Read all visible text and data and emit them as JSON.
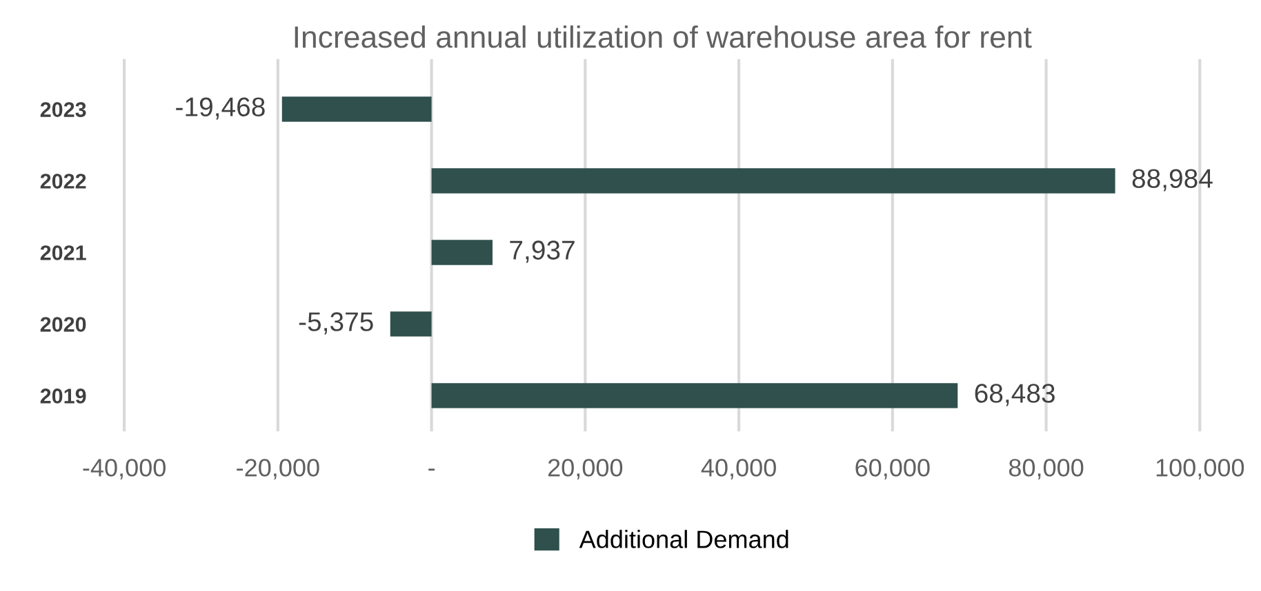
{
  "chart_data": {
    "type": "bar",
    "orientation": "horizontal",
    "title": "Increased annual utilization of warehouse area for rent",
    "categories": [
      "2023",
      "2022",
      "2021",
      "2020",
      "2019"
    ],
    "series": [
      {
        "name": "Additional Demand",
        "color": "#2f504c",
        "values": [
          -19468,
          88984,
          7937,
          -5375,
          68483
        ],
        "value_labels": [
          "-19,468",
          "88,984",
          "7,937",
          "-5,375",
          "68,483"
        ]
      }
    ],
    "xlim": [
      -40000,
      100000
    ],
    "xticks": [
      {
        "value": -40000,
        "label": "-40,000"
      },
      {
        "value": -20000,
        "label": "-20,000"
      },
      {
        "value": 0,
        "label": "-"
      },
      {
        "value": 20000,
        "label": "20,000"
      },
      {
        "value": 40000,
        "label": "40,000"
      },
      {
        "value": 60000,
        "label": "60,000"
      },
      {
        "value": 80000,
        "label": "80,000"
      },
      {
        "value": 100000,
        "label": "100,000"
      }
    ],
    "grid": "x",
    "legend": "bottom"
  }
}
